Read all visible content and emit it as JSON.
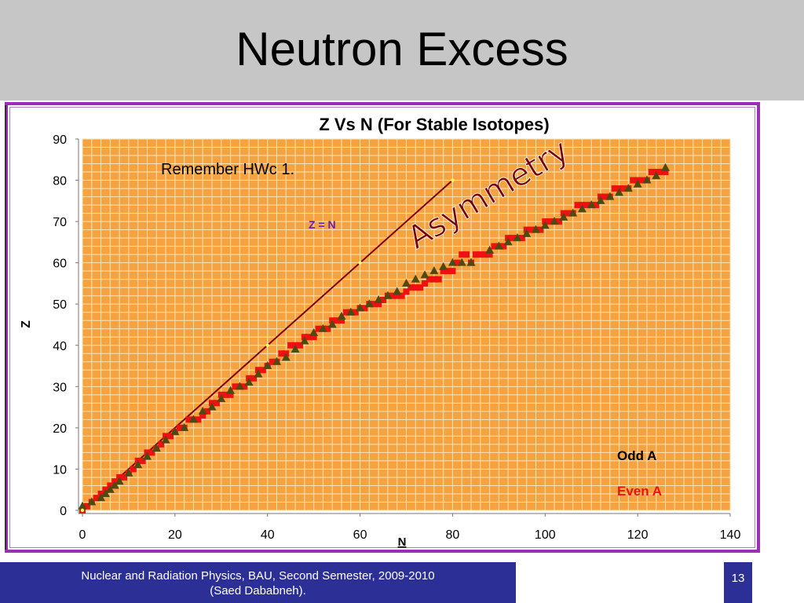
{
  "slide": {
    "title": "Neutron Excess",
    "footer_line1": "Nuclear and Radiation Physics, BAU, Second Semester, 2009-2010",
    "footer_line2": "(Saed Dababneh).",
    "page_number": "13"
  },
  "colors": {
    "title_band": "#c6c6c6",
    "frame": "#9b2fb8",
    "plot_bg": "#f5a340",
    "grid": "#fde3b8",
    "odd_marker": "#4d4a12",
    "even_marker": "#ee1111",
    "zn_line": "#800000",
    "zn_label": "#6b1fa8",
    "asymmetry": "#7a0000",
    "footer_bg": "#2b2f96"
  },
  "chart_data": {
    "type": "scatter",
    "title": "Z Vs N (For Stable Isotopes)",
    "xlabel": "N",
    "ylabel": "Z",
    "xlim": [
      0,
      140
    ],
    "ylim": [
      0,
      90
    ],
    "xticks": [
      "0",
      "20",
      "40",
      "60",
      "80",
      "100",
      "120",
      "140"
    ],
    "yticks": [
      "0",
      "10",
      "20",
      "30",
      "40",
      "50",
      "60",
      "70",
      "80",
      "90"
    ],
    "grid": true,
    "legend_placement": "bottom-right",
    "annotations": {
      "remember": "Remember HWc 1.",
      "zn": "Z = N",
      "asymmetry": "Asymmetry"
    },
    "zn_line": {
      "name": "Z = N",
      "x": [
        0,
        80
      ],
      "y": [
        0,
        80
      ]
    },
    "series": [
      {
        "name": "Odd A",
        "marker": "triangle",
        "x": [
          0,
          2,
          4,
          5,
          6,
          7,
          8,
          10,
          12,
          14,
          16,
          18,
          20,
          22,
          24,
          26,
          28,
          30,
          32,
          34,
          36,
          38,
          40,
          42,
          44,
          46,
          48,
          50,
          52,
          54,
          56,
          58,
          60,
          62,
          64,
          66,
          68,
          70,
          72,
          74,
          76,
          78,
          80,
          82,
          84,
          88,
          90,
          92,
          94,
          96,
          98,
          100,
          102,
          104,
          106,
          108,
          110,
          112,
          114,
          116,
          118,
          120,
          122,
          124,
          126
        ],
        "y": [
          1,
          2,
          3,
          4,
          5,
          6,
          7,
          9,
          11,
          13,
          15,
          17,
          19,
          20,
          22,
          24,
          25,
          27,
          29,
          30,
          31,
          33,
          35,
          36,
          37,
          39,
          41,
          43,
          44,
          45,
          47,
          48,
          49,
          50,
          51,
          52,
          53,
          55,
          56,
          57,
          58,
          59,
          60,
          60,
          60,
          63,
          64,
          65,
          66,
          67,
          68,
          69,
          70,
          71,
          72,
          73,
          74,
          75,
          76,
          77,
          78,
          79,
          80,
          81,
          83
        ]
      },
      {
        "name": "Even A",
        "marker": "square",
        "x": [
          0,
          1,
          2,
          3,
          4,
          5,
          6,
          7,
          8,
          9,
          10,
          11,
          12,
          13,
          14,
          15,
          16,
          17,
          18,
          19,
          20,
          21,
          22,
          23,
          24,
          25,
          26,
          27,
          28,
          29,
          30,
          31,
          32,
          33,
          34,
          35,
          36,
          37,
          38,
          39,
          40,
          41,
          42,
          43,
          44,
          45,
          46,
          47,
          48,
          49,
          50,
          51,
          52,
          53,
          54,
          55,
          56,
          57,
          58,
          59,
          60,
          61,
          62,
          63,
          64,
          65,
          66,
          67,
          68,
          69,
          70,
          71,
          72,
          73,
          74,
          75,
          76,
          77,
          78,
          79,
          80,
          81,
          82,
          83,
          84,
          85,
          86,
          87,
          88,
          89,
          90,
          91,
          92,
          93,
          94,
          95,
          96,
          97,
          98,
          99,
          100,
          101,
          102,
          103,
          104,
          105,
          106,
          107,
          108,
          109,
          110,
          111,
          112,
          113,
          114,
          115,
          116,
          117,
          118,
          119,
          120,
          121,
          122,
          123,
          124,
          125,
          126
        ],
        "y": [
          0,
          1,
          2,
          3,
          4,
          5,
          6,
          7,
          8,
          8,
          9,
          10,
          12,
          12,
          14,
          14,
          15,
          16,
          18,
          18,
          19,
          20,
          20,
          22,
          22,
          22,
          23,
          24,
          26,
          26,
          28,
          28,
          28,
          30,
          30,
          30,
          32,
          32,
          34,
          34,
          35,
          36,
          36,
          38,
          38,
          40,
          40,
          40,
          42,
          42,
          42,
          44,
          44,
          44,
          46,
          46,
          46,
          48,
          48,
          48,
          49,
          49,
          50,
          50,
          50,
          51,
          52,
          52,
          52,
          52,
          53,
          54,
          54,
          54,
          55,
          56,
          56,
          56,
          58,
          58,
          58,
          60,
          62,
          62,
          60,
          62,
          62,
          62,
          62,
          64,
          64,
          64,
          66,
          66,
          66,
          66,
          68,
          68,
          68,
          68,
          70,
          70,
          70,
          70,
          72,
          72,
          72,
          74,
          74,
          74,
          74,
          74,
          76,
          76,
          76,
          78,
          78,
          78,
          78,
          80,
          80,
          80,
          80,
          82,
          82,
          82,
          82
        ]
      }
    ],
    "zn_markers": {
      "x": [
        0,
        60,
        40,
        80
      ],
      "y": [
        0,
        60,
        40,
        80
      ]
    }
  }
}
